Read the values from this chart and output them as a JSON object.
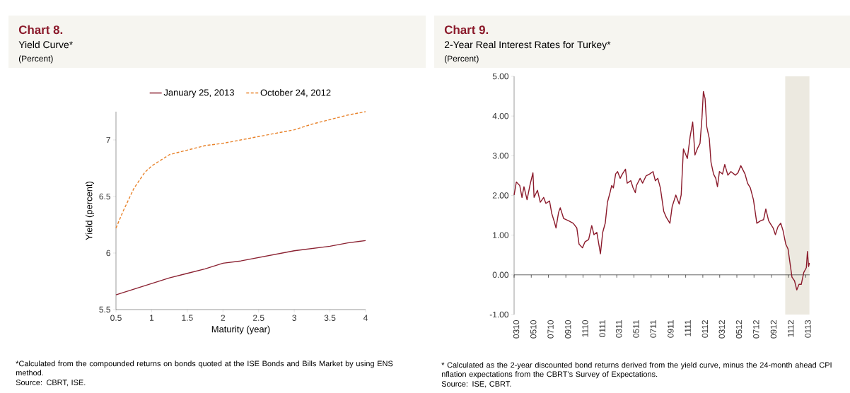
{
  "chart_data": [
    {
      "type": "line",
      "title": "Chart 8.",
      "subtitle": "Yield Curve*",
      "xlabel": "Maturity (year)",
      "ylabel": "Yield (percent)",
      "annotations": [
        "(Percent)",
        "*Calculated from the compounded returns on bonds quoted at the ISE Bonds and Bills Market by using ENS method.",
        "Source: CBRT, ISE."
      ],
      "xlim": [
        0.5,
        4
      ],
      "ylim": [
        5.5,
        7.25
      ],
      "xticks": [
        0.5,
        1,
        1.5,
        2,
        2.5,
        3,
        3.5,
        4
      ],
      "yticks": [
        5.5,
        6,
        6.5,
        7
      ],
      "legend": "top",
      "grid": false,
      "series": [
        {
          "name": "January 25, 2013",
          "color": "#8b2232",
          "line_style": "solid",
          "x": [
            0.5,
            0.75,
            1.0,
            1.25,
            1.5,
            1.75,
            2.0,
            2.25,
            2.5,
            2.75,
            3.0,
            3.25,
            3.5,
            3.75,
            4.0
          ],
          "values": [
            5.63,
            5.68,
            5.73,
            5.78,
            5.82,
            5.86,
            5.91,
            5.93,
            5.96,
            5.99,
            6.02,
            6.04,
            6.06,
            6.09,
            6.11
          ]
        },
        {
          "name": "October 24, 2012",
          "color": "#e8822a",
          "line_style": "dashed",
          "x": [
            0.5,
            0.6,
            0.75,
            0.9,
            1.0,
            1.25,
            1.5,
            1.75,
            2.0,
            2.25,
            2.5,
            2.75,
            3.0,
            3.25,
            3.5,
            3.75,
            4.0
          ],
          "values": [
            6.22,
            6.37,
            6.57,
            6.71,
            6.77,
            6.87,
            6.91,
            6.95,
            6.97,
            7.0,
            7.03,
            7.06,
            7.09,
            7.14,
            7.18,
            7.22,
            7.25
          ]
        }
      ]
    },
    {
      "type": "line",
      "title": "Chart 9.",
      "subtitle": "2-Year Real Interest Rates for Turkey*",
      "annotations": [
        "(Percent)",
        "* Calculated as the 2-year discounted bond returns derived from the yield curve, minus the 24-month ahead CPI nflation expectations from the CBRT’s Survey of Expectations.",
        "Source: ISE, CBRT."
      ],
      "xlim": [
        "2010-03-01",
        "2013-01-15"
      ],
      "ylim": [
        -1,
        5
      ],
      "xticks": [
        {
          "value": "2010-03",
          "label": "0310"
        },
        {
          "value": "2010-05",
          "label": "0510"
        },
        {
          "value": "2010-07",
          "label": "0710"
        },
        {
          "value": "2010-09",
          "label": "0910"
        },
        {
          "value": "2010-11",
          "label": "1110"
        },
        {
          "value": "2011-01",
          "label": "0111"
        },
        {
          "value": "2011-03",
          "label": "0311"
        },
        {
          "value": "2011-05",
          "label": "0511"
        },
        {
          "value": "2011-07",
          "label": "0711"
        },
        {
          "value": "2011-09",
          "label": "0911"
        },
        {
          "value": "2011-11",
          "label": "1111"
        },
        {
          "value": "2012-01",
          "label": "0112"
        },
        {
          "value": "2012-03",
          "label": "0312"
        },
        {
          "value": "2012-05",
          "label": "0512"
        },
        {
          "value": "2012-07",
          "label": "0712"
        },
        {
          "value": "2012-09",
          "label": "0912"
        },
        {
          "value": "2012-11",
          "label": "1112"
        },
        {
          "value": "2013-01",
          "label": "0113"
        }
      ],
      "yticks": [
        {
          "value": -1,
          "label": "-1.00"
        },
        {
          "value": 0,
          "label": "0.00"
        },
        {
          "value": 1,
          "label": "1.00"
        },
        {
          "value": 2,
          "label": "2.00"
        },
        {
          "value": 3,
          "label": "3.00"
        },
        {
          "value": 4,
          "label": "4.00"
        },
        {
          "value": 5,
          "label": "5.00"
        }
      ],
      "grid": false,
      "ref_lines": [
        {
          "axis": "y",
          "value": 0,
          "color": "#000000"
        }
      ],
      "bands": [
        {
          "axis": "x",
          "from": "2012-10-20",
          "to": "2013-01-14",
          "color": "#ece9e0"
        }
      ],
      "series": [
        {
          "color": "#8b1a2b",
          "line_style": "solid",
          "x": [
            "2010-03-01",
            "2010-03-09",
            "2010-03-21",
            "2010-03-29",
            "2010-04-05",
            "2010-04-16",
            "2010-04-27",
            "2010-05-07",
            "2010-05-11",
            "2010-05-23",
            "2010-06-02",
            "2010-06-14",
            "2010-06-22",
            "2010-07-05",
            "2010-07-13",
            "2010-07-21",
            "2010-07-28",
            "2010-08-06",
            "2010-08-12",
            "2010-08-24",
            "2010-09-11",
            "2010-09-27",
            "2010-10-10",
            "2010-10-18",
            "2010-10-30",
            "2010-11-08",
            "2010-11-21",
            "2010-12-02",
            "2010-12-10",
            "2010-12-20",
            "2011-01-02",
            "2011-01-10",
            "2011-01-19",
            "2011-01-27",
            "2011-02-05",
            "2011-02-11",
            "2011-02-17",
            "2011-02-25",
            "2011-03-04",
            "2011-03-13",
            "2011-03-21",
            "2011-04-01",
            "2011-04-07",
            "2011-04-20",
            "2011-04-28",
            "2011-05-06",
            "2011-05-10",
            "2011-05-23",
            "2011-06-01",
            "2011-06-13",
            "2011-06-26",
            "2011-07-08",
            "2011-07-16",
            "2011-07-25",
            "2011-08-03",
            "2011-08-15",
            "2011-08-24",
            "2011-09-06",
            "2011-09-14",
            "2011-09-27",
            "2011-10-09",
            "2011-10-16",
            "2011-10-24",
            "2011-11-07",
            "2011-11-17",
            "2011-11-26",
            "2011-12-04",
            "2011-12-14",
            "2011-12-22",
            "2011-12-29",
            "2012-01-03",
            "2012-01-09",
            "2012-01-15",
            "2012-01-24",
            "2012-01-30",
            "2012-02-08",
            "2012-02-16",
            "2012-02-22",
            "2012-02-29",
            "2012-03-11",
            "2012-03-19",
            "2012-03-30",
            "2012-04-10",
            "2012-04-26",
            "2012-05-05",
            "2012-05-15",
            "2012-05-30",
            "2012-06-08",
            "2012-06-18",
            "2012-06-29",
            "2012-07-11",
            "2012-07-24",
            "2012-08-04",
            "2012-08-12",
            "2012-08-22",
            "2012-09-07",
            "2012-09-15",
            "2012-09-24",
            "2012-10-04",
            "2012-10-12",
            "2012-10-22",
            "2012-10-30",
            "2012-11-13",
            "2012-11-22",
            "2012-11-30",
            "2012-12-08",
            "2012-12-16",
            "2012-12-25",
            "2013-01-03",
            "2013-01-07",
            "2013-01-11",
            "2013-01-14"
          ],
          "values": [
            2.01,
            2.34,
            2.25,
            1.95,
            2.22,
            1.89,
            2.28,
            2.57,
            1.95,
            2.13,
            1.83,
            1.95,
            1.8,
            1.86,
            1.54,
            1.36,
            1.18,
            1.57,
            1.69,
            1.42,
            1.36,
            1.3,
            1.18,
            0.77,
            0.68,
            0.83,
            0.89,
            1.24,
            1.01,
            1.07,
            0.53,
            1.07,
            1.3,
            1.83,
            2.07,
            2.25,
            2.19,
            2.54,
            2.6,
            2.43,
            2.54,
            2.66,
            2.31,
            2.37,
            2.19,
            2.07,
            2.25,
            2.43,
            2.31,
            2.49,
            2.54,
            2.6,
            2.37,
            2.43,
            2.19,
            1.6,
            1.45,
            1.3,
            1.72,
            2.01,
            1.78,
            2.01,
            3.17,
            2.93,
            3.49,
            3.85,
            3.02,
            3.2,
            3.31,
            3.96,
            4.62,
            4.44,
            3.73,
            3.43,
            2.84,
            2.54,
            2.43,
            2.22,
            2.6,
            2.54,
            2.78,
            2.51,
            2.6,
            2.51,
            2.57,
            2.75,
            2.54,
            2.31,
            2.19,
            1.89,
            1.3,
            1.36,
            1.39,
            1.66,
            1.36,
            1.18,
            1.01,
            1.21,
            1.3,
            1.12,
            0.77,
            0.65,
            -0.06,
            -0.15,
            -0.38,
            -0.24,
            -0.24,
            0.06,
            0.18,
            0.59,
            0.21,
            0.3
          ]
        }
      ]
    }
  ]
}
